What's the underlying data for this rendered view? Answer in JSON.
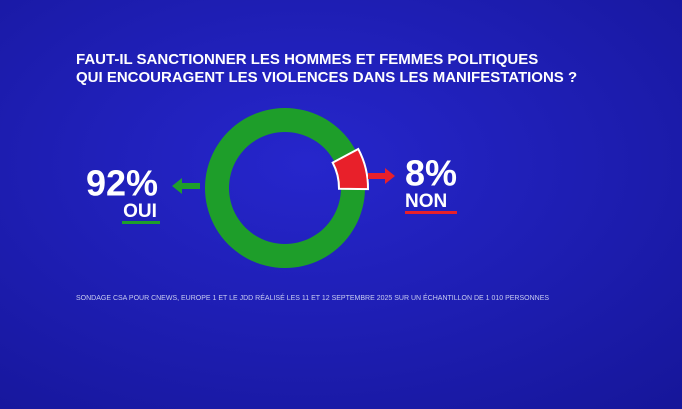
{
  "chart_data": {
    "type": "donut",
    "title": [
      "FAUT-IL SANCTIONNER LES HOMMES ET FEMMES POLITIQUES",
      "QUI ENCOURAGENT LES VIOLENCES DANS LES MANIFESTATIONS ?"
    ],
    "categories": [
      "OUI",
      "NON"
    ],
    "values": [
      92,
      8
    ],
    "value_labels": [
      "92%",
      "8%"
    ],
    "colors": [
      "#1e9e2a",
      "#e8202a"
    ],
    "note": "SONDAGE CSA POUR CNEWS, EUROPE 1 ET LE JDD RÉALISÉ LES 11 ET 12 SEPTEMBRE 2025 SUR UN ÉCHANTILLON DE 1 010 PERSONNES"
  }
}
